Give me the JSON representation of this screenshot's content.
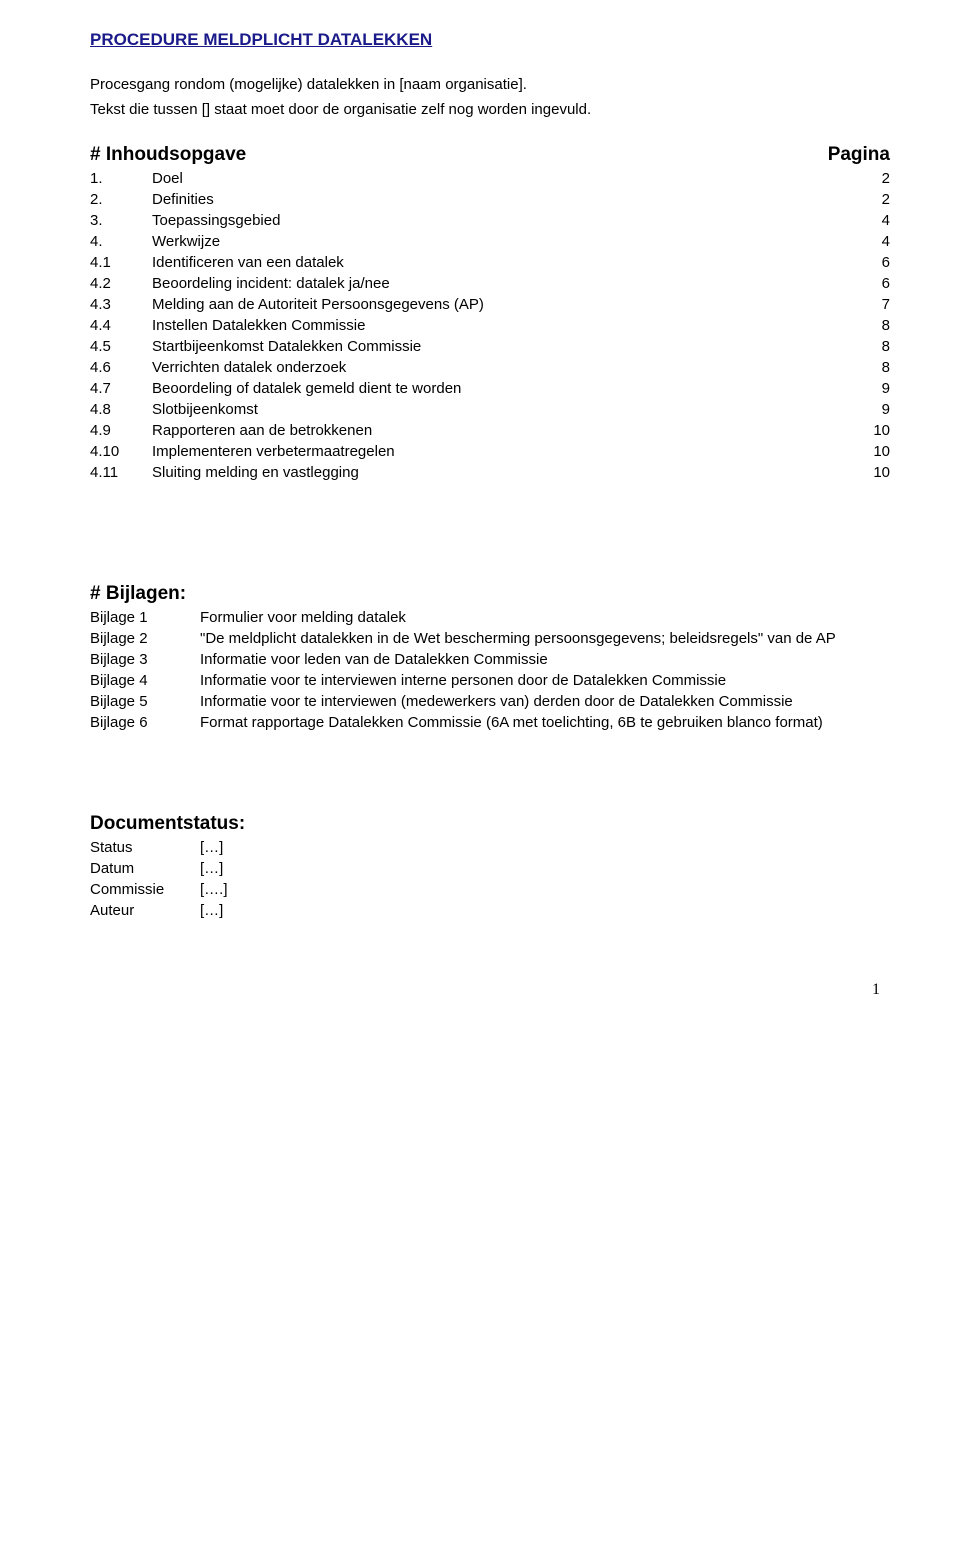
{
  "title": "PROCEDURE MELDPLICHT DATALEKKEN",
  "intro_lines": [
    "Procesgang rondom (mogelijke) datalekken in [naam organisatie].",
    "Tekst die tussen [] staat moet door de organisatie zelf nog worden ingevuld."
  ],
  "toc": {
    "heading_left": "# Inhoudsopgave",
    "heading_right": "Pagina",
    "rows": [
      {
        "num": "1.",
        "label": "Doel",
        "page": "2"
      },
      {
        "num": "2.",
        "label": "Definities",
        "page": "2"
      },
      {
        "num": "3.",
        "label": "Toepassingsgebied",
        "page": "4"
      },
      {
        "num": "4.",
        "label": "Werkwijze",
        "page": "4"
      },
      {
        "num": "4.1",
        "label": "Identificeren van een datalek",
        "page": "6"
      },
      {
        "num": "4.2",
        "label": "Beoordeling incident: datalek ja/nee",
        "page": "6"
      },
      {
        "num": "4.3",
        "label": "Melding aan de Autoriteit Persoonsgegevens (AP)",
        "page": "7"
      },
      {
        "num": "4.4",
        "label": "Instellen Datalekken Commissie",
        "page": "8"
      },
      {
        "num": "4.5",
        "label": "Startbijeenkomst Datalekken Commissie",
        "page": "8"
      },
      {
        "num": "4.6",
        "label": "Verrichten datalek onderzoek",
        "page": "8"
      },
      {
        "num": "4.7",
        "label": "Beoordeling of datalek gemeld dient te worden",
        "page": "9"
      },
      {
        "num": "4.8",
        "label": "Slotbijeenkomst",
        "page": "9"
      },
      {
        "num": "4.9",
        "label": "Rapporteren aan de betrokkenen",
        "page": "10"
      },
      {
        "num": "4.10",
        "label": "Implementeren verbetermaatregelen",
        "page": "10"
      },
      {
        "num": "4.11",
        "label": "Sluiting melding en vastlegging",
        "page": "10"
      }
    ]
  },
  "bijlagen": {
    "heading": "# Bijlagen:",
    "rows": [
      {
        "num": "Bijlage 1",
        "label": "Formulier voor melding datalek"
      },
      {
        "num": "Bijlage 2",
        "label": "\"De meldplicht datalekken in de Wet bescherming persoonsgegevens; beleidsregels\" van de AP"
      },
      {
        "num": "Bijlage 3",
        "label": "Informatie voor leden van de Datalekken Commissie"
      },
      {
        "num": "Bijlage 4",
        "label": "Informatie voor te interviewen interne personen door de Datalekken Commissie"
      },
      {
        "num": "Bijlage 5",
        "label": "Informatie voor te interviewen (medewerkers van) derden door de Datalekken Commissie"
      },
      {
        "num": "Bijlage 6",
        "label": "Format rapportage Datalekken Commissie (6A met toelichting, 6B te gebruiken blanco format)"
      }
    ]
  },
  "docstatus": {
    "heading": "Documentstatus:",
    "rows": [
      {
        "key": "Status",
        "val": "[…]"
      },
      {
        "key": "Datum",
        "val": "[…]"
      },
      {
        "key": "Commissie",
        "val": "[….]"
      },
      {
        "key": "Auteur",
        "val": "[…]"
      }
    ]
  },
  "page_number": "1"
}
